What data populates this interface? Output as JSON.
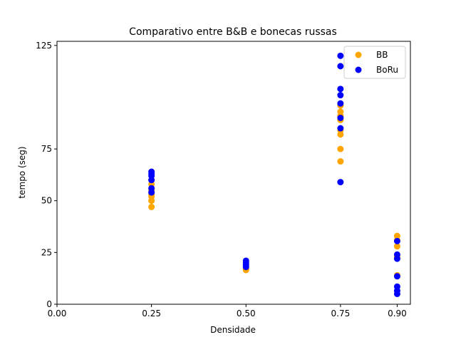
{
  "chart_data": {
    "type": "scatter",
    "title": "Comparativo entre B&B e bonecas russas",
    "xlabel": "Densidade",
    "ylabel": "tempo (seg)",
    "xlim": [
      0.0,
      0.935
    ],
    "ylim": [
      0,
      127
    ],
    "xticks": [
      0.0,
      0.25,
      0.5,
      0.75,
      0.9
    ],
    "xtick_labels": [
      "0.00",
      "0.25",
      "0.50",
      "0.75",
      "0.90"
    ],
    "yticks": [
      0,
      25,
      50,
      75,
      125
    ],
    "ytick_labels": [
      "0",
      "25",
      "50",
      "75",
      "125"
    ],
    "legend_position": "top-right",
    "grid": false,
    "series": [
      {
        "name": "BB",
        "color": "#ffa500",
        "points": [
          [
            0.25,
            47
          ],
          [
            0.25,
            50
          ],
          [
            0.25,
            52
          ],
          [
            0.25,
            53
          ],
          [
            0.25,
            55
          ],
          [
            0.25,
            58
          ],
          [
            0.25,
            60
          ],
          [
            0.5,
            16.5
          ],
          [
            0.5,
            17
          ],
          [
            0.5,
            18
          ],
          [
            0.5,
            19
          ],
          [
            0.75,
            69
          ],
          [
            0.75,
            75
          ],
          [
            0.75,
            82
          ],
          [
            0.75,
            84
          ],
          [
            0.75,
            89
          ],
          [
            0.75,
            91
          ],
          [
            0.75,
            93
          ],
          [
            0.75,
            96
          ],
          [
            0.9,
            14
          ],
          [
            0.9,
            23
          ],
          [
            0.9,
            28
          ],
          [
            0.9,
            31
          ],
          [
            0.9,
            33
          ]
        ]
      },
      {
        "name": "BoRu",
        "color": "#0000ff",
        "points": [
          [
            0.25,
            54
          ],
          [
            0.25,
            56
          ],
          [
            0.25,
            60
          ],
          [
            0.25,
            62
          ],
          [
            0.25,
            63
          ],
          [
            0.25,
            64
          ],
          [
            0.5,
            18
          ],
          [
            0.5,
            19
          ],
          [
            0.5,
            20
          ],
          [
            0.5,
            21
          ],
          [
            0.75,
            59
          ],
          [
            0.75,
            85
          ],
          [
            0.75,
            90
          ],
          [
            0.75,
            97
          ],
          [
            0.75,
            101
          ],
          [
            0.75,
            104
          ],
          [
            0.75,
            115
          ],
          [
            0.75,
            120
          ],
          [
            0.9,
            5
          ],
          [
            0.9,
            6.5
          ],
          [
            0.9,
            8.5
          ],
          [
            0.9,
            13.5
          ],
          [
            0.9,
            22
          ],
          [
            0.9,
            24
          ],
          [
            0.9,
            30.5
          ]
        ]
      }
    ]
  }
}
